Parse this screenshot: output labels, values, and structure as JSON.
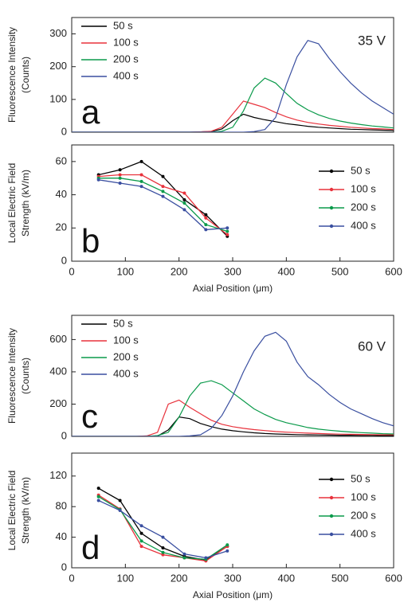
{
  "chart_data": [
    {
      "type": "line",
      "panel_label": "a",
      "annotation": "35 V",
      "ylabel": [
        "Fluorescence Intensity",
        "(Counts)"
      ],
      "x": [
        0,
        20,
        40,
        60,
        80,
        100,
        120,
        140,
        160,
        180,
        200,
        220,
        240,
        260,
        280,
        300,
        320,
        340,
        360,
        380,
        400,
        420,
        440,
        460,
        480,
        500,
        520,
        540,
        560,
        580,
        600
      ],
      "xlim": [
        0,
        600
      ],
      "ylim": [
        0,
        350
      ],
      "yticks": [
        0,
        100,
        200,
        300
      ],
      "legend": "upper left",
      "series": [
        {
          "name": "50 s",
          "color": "#000000",
          "values": [
            0,
            0,
            0,
            0,
            0,
            0,
            0,
            0,
            0,
            0,
            0,
            0,
            1,
            2,
            10,
            35,
            55,
            45,
            38,
            32,
            26,
            22,
            18,
            15,
            13,
            11,
            9,
            8,
            7,
            6,
            5
          ]
        },
        {
          "name": "100 s",
          "color": "#e8323c",
          "values": [
            0,
            0,
            0,
            0,
            0,
            0,
            0,
            0,
            0,
            0,
            0,
            0,
            1,
            3,
            15,
            55,
            95,
            85,
            75,
            60,
            47,
            37,
            30,
            25,
            21,
            18,
            15,
            13,
            11,
            10,
            8
          ]
        },
        {
          "name": "200 s",
          "color": "#0a9a4a",
          "values": [
            0,
            0,
            0,
            0,
            0,
            0,
            0,
            0,
            0,
            0,
            0,
            0,
            0,
            0,
            3,
            15,
            65,
            135,
            165,
            150,
            118,
            88,
            68,
            53,
            42,
            34,
            28,
            23,
            19,
            16,
            13
          ]
        },
        {
          "name": "400 s",
          "color": "#3a4fa0",
          "values": [
            0,
            0,
            0,
            0,
            0,
            0,
            0,
            0,
            0,
            0,
            0,
            0,
            0,
            0,
            0,
            0,
            0,
            2,
            8,
            45,
            145,
            230,
            280,
            270,
            225,
            185,
            150,
            120,
            95,
            75,
            55
          ]
        }
      ]
    },
    {
      "type": "line",
      "markers": true,
      "panel_label": "b",
      "ylabel": [
        "Local Electric Field",
        "Strength (kV/m)"
      ],
      "xlabel": "Axial Position (μm)",
      "x": [
        50,
        90,
        130,
        170,
        210,
        250,
        290
      ],
      "xlim": [
        0,
        600
      ],
      "xticks": [
        0,
        100,
        200,
        300,
        400,
        500,
        600
      ],
      "ylim": [
        0,
        70
      ],
      "yticks": [
        0,
        20,
        40,
        60
      ],
      "legend": "upper right",
      "series": [
        {
          "name": "50 s",
          "color": "#000000",
          "values": [
            52,
            55,
            60,
            51,
            37,
            28,
            15
          ]
        },
        {
          "name": "100 s",
          "color": "#e8323c",
          "values": [
            51,
            52,
            52,
            45,
            41,
            26,
            16
          ]
        },
        {
          "name": "200 s",
          "color": "#0a9a4a",
          "values": [
            50,
            50,
            48,
            42,
            35,
            22,
            18
          ]
        },
        {
          "name": "400 s",
          "color": "#3a4fa0",
          "values": [
            49,
            47,
            45,
            39,
            31,
            19,
            20
          ]
        }
      ]
    },
    {
      "type": "line",
      "panel_label": "c",
      "annotation": "60 V",
      "ylabel": [
        "Fluorescence Intensity",
        "(Counts)"
      ],
      "x": [
        0,
        20,
        40,
        60,
        80,
        100,
        120,
        140,
        160,
        180,
        200,
        220,
        240,
        260,
        280,
        300,
        320,
        340,
        360,
        380,
        400,
        420,
        440,
        460,
        480,
        500,
        520,
        540,
        560,
        580,
        600
      ],
      "xlim": [
        0,
        600
      ],
      "ylim": [
        0,
        750
      ],
      "yticks": [
        0,
        200,
        400,
        600
      ],
      "legend": "upper left",
      "series": [
        {
          "name": "50 s",
          "color": "#000000",
          "values": [
            0,
            0,
            0,
            0,
            0,
            0,
            0,
            0,
            2,
            40,
            120,
            110,
            80,
            60,
            45,
            35,
            28,
            22,
            18,
            15,
            13,
            11,
            10,
            9,
            8,
            7,
            7,
            6,
            6,
            5,
            5
          ]
        },
        {
          "name": "100 s",
          "color": "#e8323c",
          "values": [
            0,
            0,
            0,
            0,
            0,
            0,
            0,
            3,
            25,
            200,
            225,
            180,
            140,
            100,
            75,
            60,
            50,
            42,
            36,
            30,
            26,
            23,
            20,
            18,
            16,
            14,
            13,
            12,
            11,
            10,
            10
          ]
        },
        {
          "name": "200 s",
          "color": "#0a9a4a",
          "values": [
            0,
            0,
            0,
            0,
            0,
            0,
            0,
            0,
            5,
            25,
            120,
            250,
            330,
            345,
            320,
            270,
            220,
            170,
            135,
            105,
            85,
            70,
            55,
            45,
            38,
            32,
            27,
            23,
            20,
            17,
            15
          ]
        },
        {
          "name": "400 s",
          "color": "#3a4fa0",
          "values": [
            0,
            0,
            0,
            0,
            0,
            0,
            0,
            0,
            0,
            0,
            0,
            3,
            10,
            50,
            130,
            250,
            400,
            530,
            620,
            645,
            590,
            460,
            370,
            320,
            260,
            210,
            170,
            140,
            110,
            85,
            65
          ]
        }
      ]
    },
    {
      "type": "line",
      "markers": true,
      "panel_label": "d",
      "ylabel": [
        "Local Electric Field",
        "Strength (kV/m)"
      ],
      "xlabel": "Axial Position (μm)",
      "x": [
        50,
        90,
        130,
        170,
        210,
        250,
        290
      ],
      "xlim": [
        0,
        600
      ],
      "xticks": [
        0,
        100,
        200,
        300,
        400,
        500,
        600
      ],
      "ylim": [
        0,
        150
      ],
      "yticks": [
        0,
        40,
        80,
        120
      ],
      "legend": "upper right",
      "series": [
        {
          "name": "50 s",
          "color": "#000000",
          "values": [
            104,
            88,
            45,
            26,
            15,
            10,
            28
          ]
        },
        {
          "name": "100 s",
          "color": "#e8323c",
          "values": [
            95,
            77,
            28,
            17,
            13,
            9,
            28
          ]
        },
        {
          "name": "200 s",
          "color": "#0a9a4a",
          "values": [
            93,
            76,
            35,
            20,
            13,
            11,
            30
          ]
        },
        {
          "name": "400 s",
          "color": "#3a4fa0",
          "values": [
            88,
            75,
            55,
            40,
            18,
            13,
            22
          ]
        }
      ]
    }
  ]
}
